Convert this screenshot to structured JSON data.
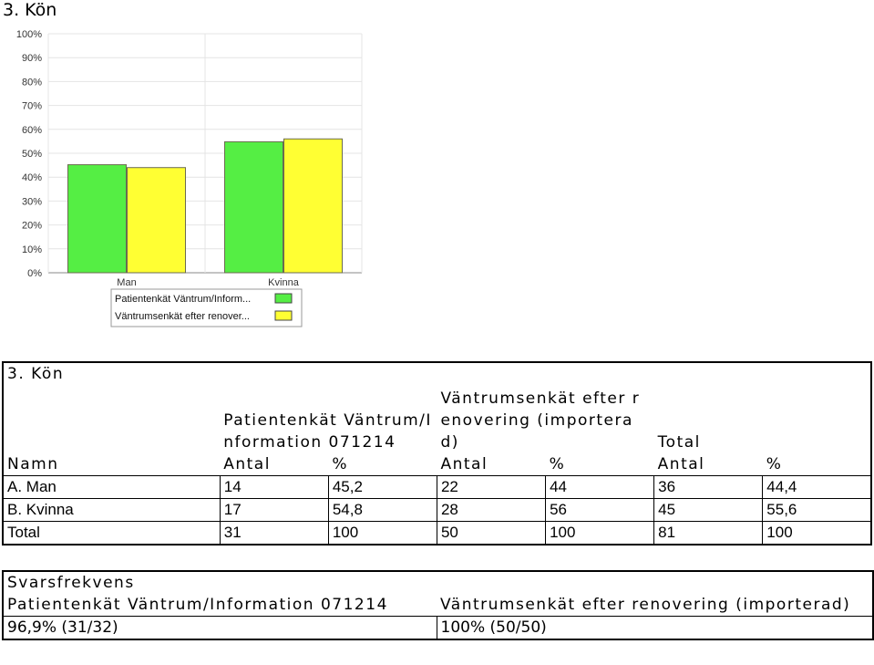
{
  "heading": "3. Kön",
  "chart_data": {
    "type": "bar",
    "categories": [
      "Man",
      "Kvinna"
    ],
    "series": [
      {
        "name": "Patientenkät Väntrum/Inform...",
        "values": [
          45.2,
          54.8
        ],
        "color": "#55ee44"
      },
      {
        "name": "Väntrumsenkät efter renover...",
        "values": [
          44,
          56
        ],
        "color": "#ffff33"
      }
    ],
    "ylim": [
      0,
      100
    ],
    "yticks": [
      "0%",
      "10%",
      "20%",
      "30%",
      "40%",
      "50%",
      "60%",
      "70%",
      "80%",
      "90%",
      "100%"
    ],
    "grid": true,
    "legend": "bottom"
  },
  "gender_table": {
    "title": "3. Kön",
    "group1": "Patientenkät Väntrum/Information 071214",
    "group2": "Väntrumsenkät efter renovering (importerad)",
    "group3": "Total",
    "columns": [
      "Namn",
      "Antal",
      "%",
      "Antal",
      "%",
      "Antal",
      "%"
    ],
    "rows": [
      [
        "A. Man",
        "14",
        "45,2",
        "22",
        "44",
        "36",
        "44,4"
      ],
      [
        "B. Kvinna",
        "17",
        "54,8",
        "28",
        "56",
        "45",
        "55,6"
      ],
      [
        "Total",
        "31",
        "100",
        "50",
        "100",
        "81",
        "100"
      ]
    ]
  },
  "response_table": {
    "title": "Svarsfrekvens",
    "col1_label": "Patientenkät Väntrum/Information 071214",
    "col2_label": "Väntrumsenkät efter renovering (importerad)",
    "col1_value": "96,9% (31/32)",
    "col2_value": "100% (50/50)"
  }
}
